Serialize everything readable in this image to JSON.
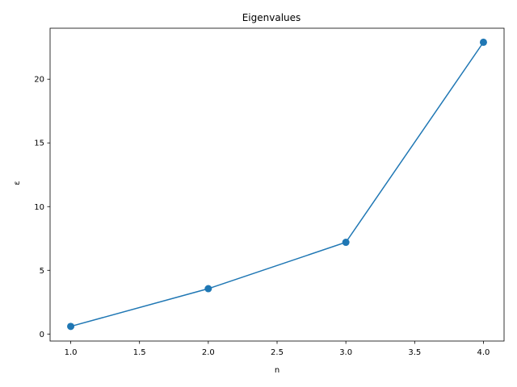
{
  "chart_data": {
    "type": "line",
    "title": "Eigenvalues",
    "xlabel": "n",
    "ylabel": "ε",
    "xlim": [
      0.85,
      4.15
    ],
    "ylim": [
      -0.55,
      24.0
    ],
    "x_ticks": [
      1.0,
      1.5,
      2.0,
      2.5,
      3.0,
      3.5,
      4.0
    ],
    "x_tick_labels": [
      "1.0",
      "1.5",
      "2.0",
      "2.5",
      "3.0",
      "3.5",
      "4.0"
    ],
    "y_ticks": [
      0,
      5,
      10,
      15,
      20
    ],
    "y_tick_labels": [
      "0",
      "5",
      "10",
      "15",
      "20"
    ],
    "grid": false,
    "series": [
      {
        "x": [
          1,
          2,
          3,
          4
        ],
        "values": [
          0.6,
          3.56,
          7.2,
          22.9
        ],
        "color": "#1f77b4",
        "marker": "circle"
      }
    ]
  }
}
